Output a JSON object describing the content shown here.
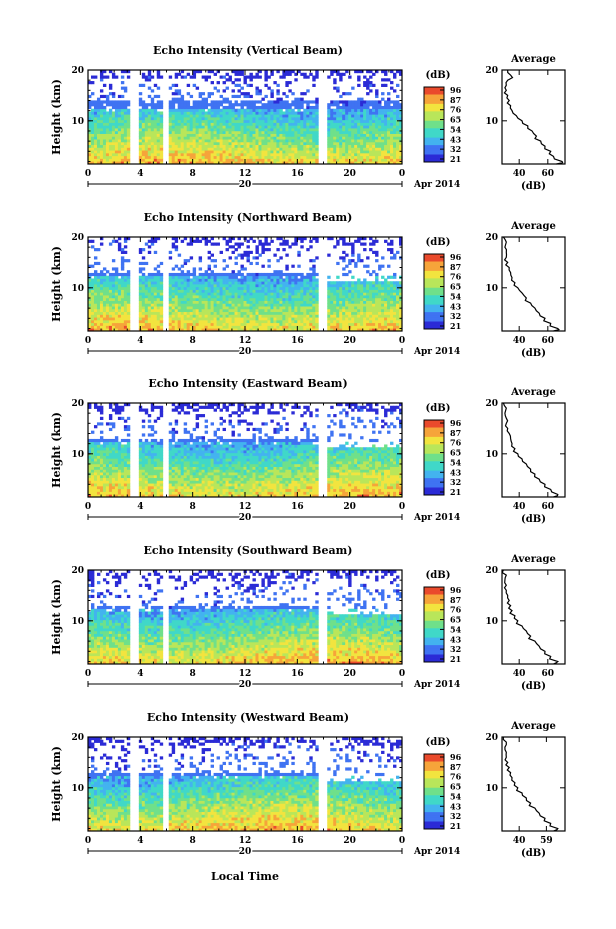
{
  "figure": {
    "panels": [
      {
        "title": "Echo Intensity (Vertical Beam)",
        "date_label": "Apr 2014",
        "day_label": "20",
        "profile": "vertical"
      },
      {
        "title": "Echo Intensity (Northward Beam)",
        "date_label": "Apr 2014",
        "day_label": "20",
        "profile": "oblique"
      },
      {
        "title": "Echo Intensity (Eastward Beam)",
        "date_label": "Apr 2014",
        "day_label": "20",
        "profile": "oblique"
      },
      {
        "title": "Echo Intensity (Southward Beam)",
        "date_label": "Apr 2014",
        "day_label": "20",
        "profile": "oblique"
      },
      {
        "title": "Echo Intensity (Westward Beam)",
        "date_label": "Apr 2014",
        "day_label": "20",
        "profile": "oblique"
      }
    ],
    "ylabel": "Height (km)",
    "xlabel": "Local Time",
    "avg_title": "Average",
    "avg_unit": "(dB)",
    "cb_unit": "(dB)"
  },
  "chart_data": {
    "type": "heatmap",
    "x_ticks": [
      "0",
      "4",
      "8",
      "12",
      "16",
      "20",
      "0"
    ],
    "x_range": [
      0,
      24
    ],
    "y_ticks": [
      "20",
      "10"
    ],
    "y_range": [
      1.5,
      20
    ],
    "colorbar_ticks": [
      "96",
      "87",
      "76",
      "65",
      "54",
      "43",
      "32",
      "21"
    ],
    "colorbar_range": [
      21,
      96
    ],
    "data_gaps_hours": [
      [
        3.3,
        3.8
      ],
      [
        5.7,
        6.2
      ],
      [
        17.7,
        18.2
      ]
    ],
    "colormap": [
      "#2b2bd6",
      "#3f73f2",
      "#43b3ef",
      "#40d8c8",
      "#6fe08a",
      "#b9e65a",
      "#f2e43f",
      "#f6a43a",
      "#ea4a2c"
    ],
    "avg_panels": [
      {
        "xticks": [
          "40",
          "60"
        ],
        "xlim": [
          28,
          72
        ]
      },
      {
        "xticks": [
          "40",
          "60"
        ],
        "xlim": [
          28,
          72
        ]
      },
      {
        "xticks": [
          "40",
          "60"
        ],
        "xlim": [
          28,
          72
        ]
      },
      {
        "xticks": [
          "40",
          "60"
        ],
        "xlim": [
          28,
          72
        ]
      },
      {
        "xticks": [
          "40",
          "59"
        ],
        "xlim": [
          28,
          72
        ]
      }
    ],
    "avg_profile_vertical": {
      "height_km": [
        1.5,
        2,
        3,
        4,
        5,
        6,
        7,
        8,
        9,
        10,
        11,
        12,
        13,
        14,
        15,
        16,
        17,
        18,
        19,
        20
      ],
      "db": [
        66,
        70,
        64,
        62,
        58,
        55,
        52,
        49,
        46,
        42,
        38,
        35,
        34,
        33,
        32,
        31,
        31,
        32,
        34,
        32
      ]
    },
    "avg_profile_oblique": {
      "height_km": [
        1.5,
        2,
        3,
        4,
        5,
        6,
        7,
        8,
        9,
        10,
        11,
        12,
        13,
        14,
        15,
        16,
        17,
        18,
        19,
        20
      ],
      "db": [
        64,
        67,
        62,
        58,
        54,
        51,
        48,
        45,
        42,
        39,
        37,
        35,
        34,
        33,
        32,
        31,
        31,
        30,
        31,
        29
      ]
    }
  }
}
